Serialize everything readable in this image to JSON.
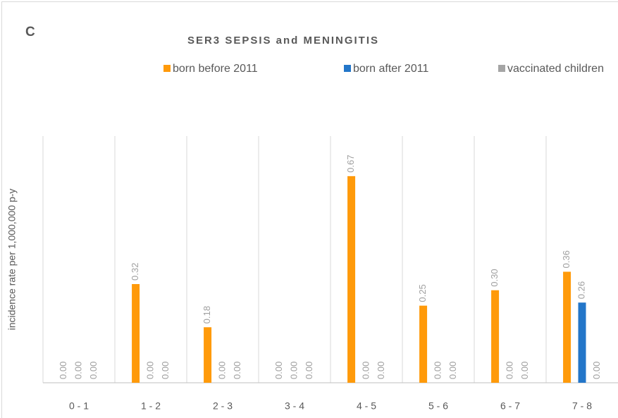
{
  "chart_data": {
    "type": "bar",
    "panel_label": "C",
    "title": "SER3 SEPSIS and MENINGITIS",
    "y_label": "incidence rate per 1,000,000 p-y",
    "categories": [
      "0 - 1",
      "1 - 2",
      "2 - 3",
      "3 - 4",
      "4 - 5",
      "5 - 6",
      "6 - 7",
      "7 - 8"
    ],
    "series": [
      {
        "name": "born before 2011",
        "color": "#ff9a0a",
        "values": [
          0,
          0.32,
          0.18,
          0,
          0.67,
          0.25,
          0.3,
          0.36
        ],
        "value_labels": [
          "0.00",
          "0.32",
          "0.18",
          "0.00",
          "0.67",
          "0.25",
          "0.30",
          "0.36"
        ]
      },
      {
        "name": "born after 2011",
        "color": "#2376c9",
        "values": [
          0,
          0,
          0,
          0,
          0,
          0,
          0,
          0.26
        ],
        "value_labels": [
          "0.00",
          "0.00",
          "0.00",
          "0.00",
          "0.00",
          "0.00",
          "0.00",
          "0.26"
        ]
      },
      {
        "name": "vaccinated children",
        "color": "#a5a5a5",
        "values": [
          0,
          0,
          0,
          0,
          0,
          0,
          0,
          0
        ],
        "value_labels": [
          "0.00",
          "0.00",
          "0.00",
          "0.00",
          "0.00",
          "0.00",
          "0.00",
          "0.00"
        ]
      }
    ],
    "ylim": [
      0,
      0.8
    ],
    "grid": true,
    "legend": "top"
  }
}
